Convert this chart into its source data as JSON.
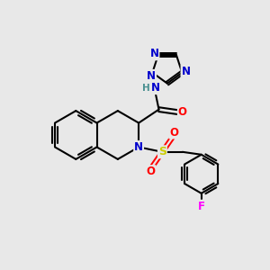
{
  "bg_color": "#e8e8e8",
  "atoms": {
    "colors": {
      "C": "#000000",
      "N": "#0000cc",
      "O": "#ff0000",
      "S": "#cccc00",
      "F": "#ff00ff",
      "H": "#4a9090"
    }
  },
  "figsize": [
    3.0,
    3.0
  ],
  "dpi": 100
}
